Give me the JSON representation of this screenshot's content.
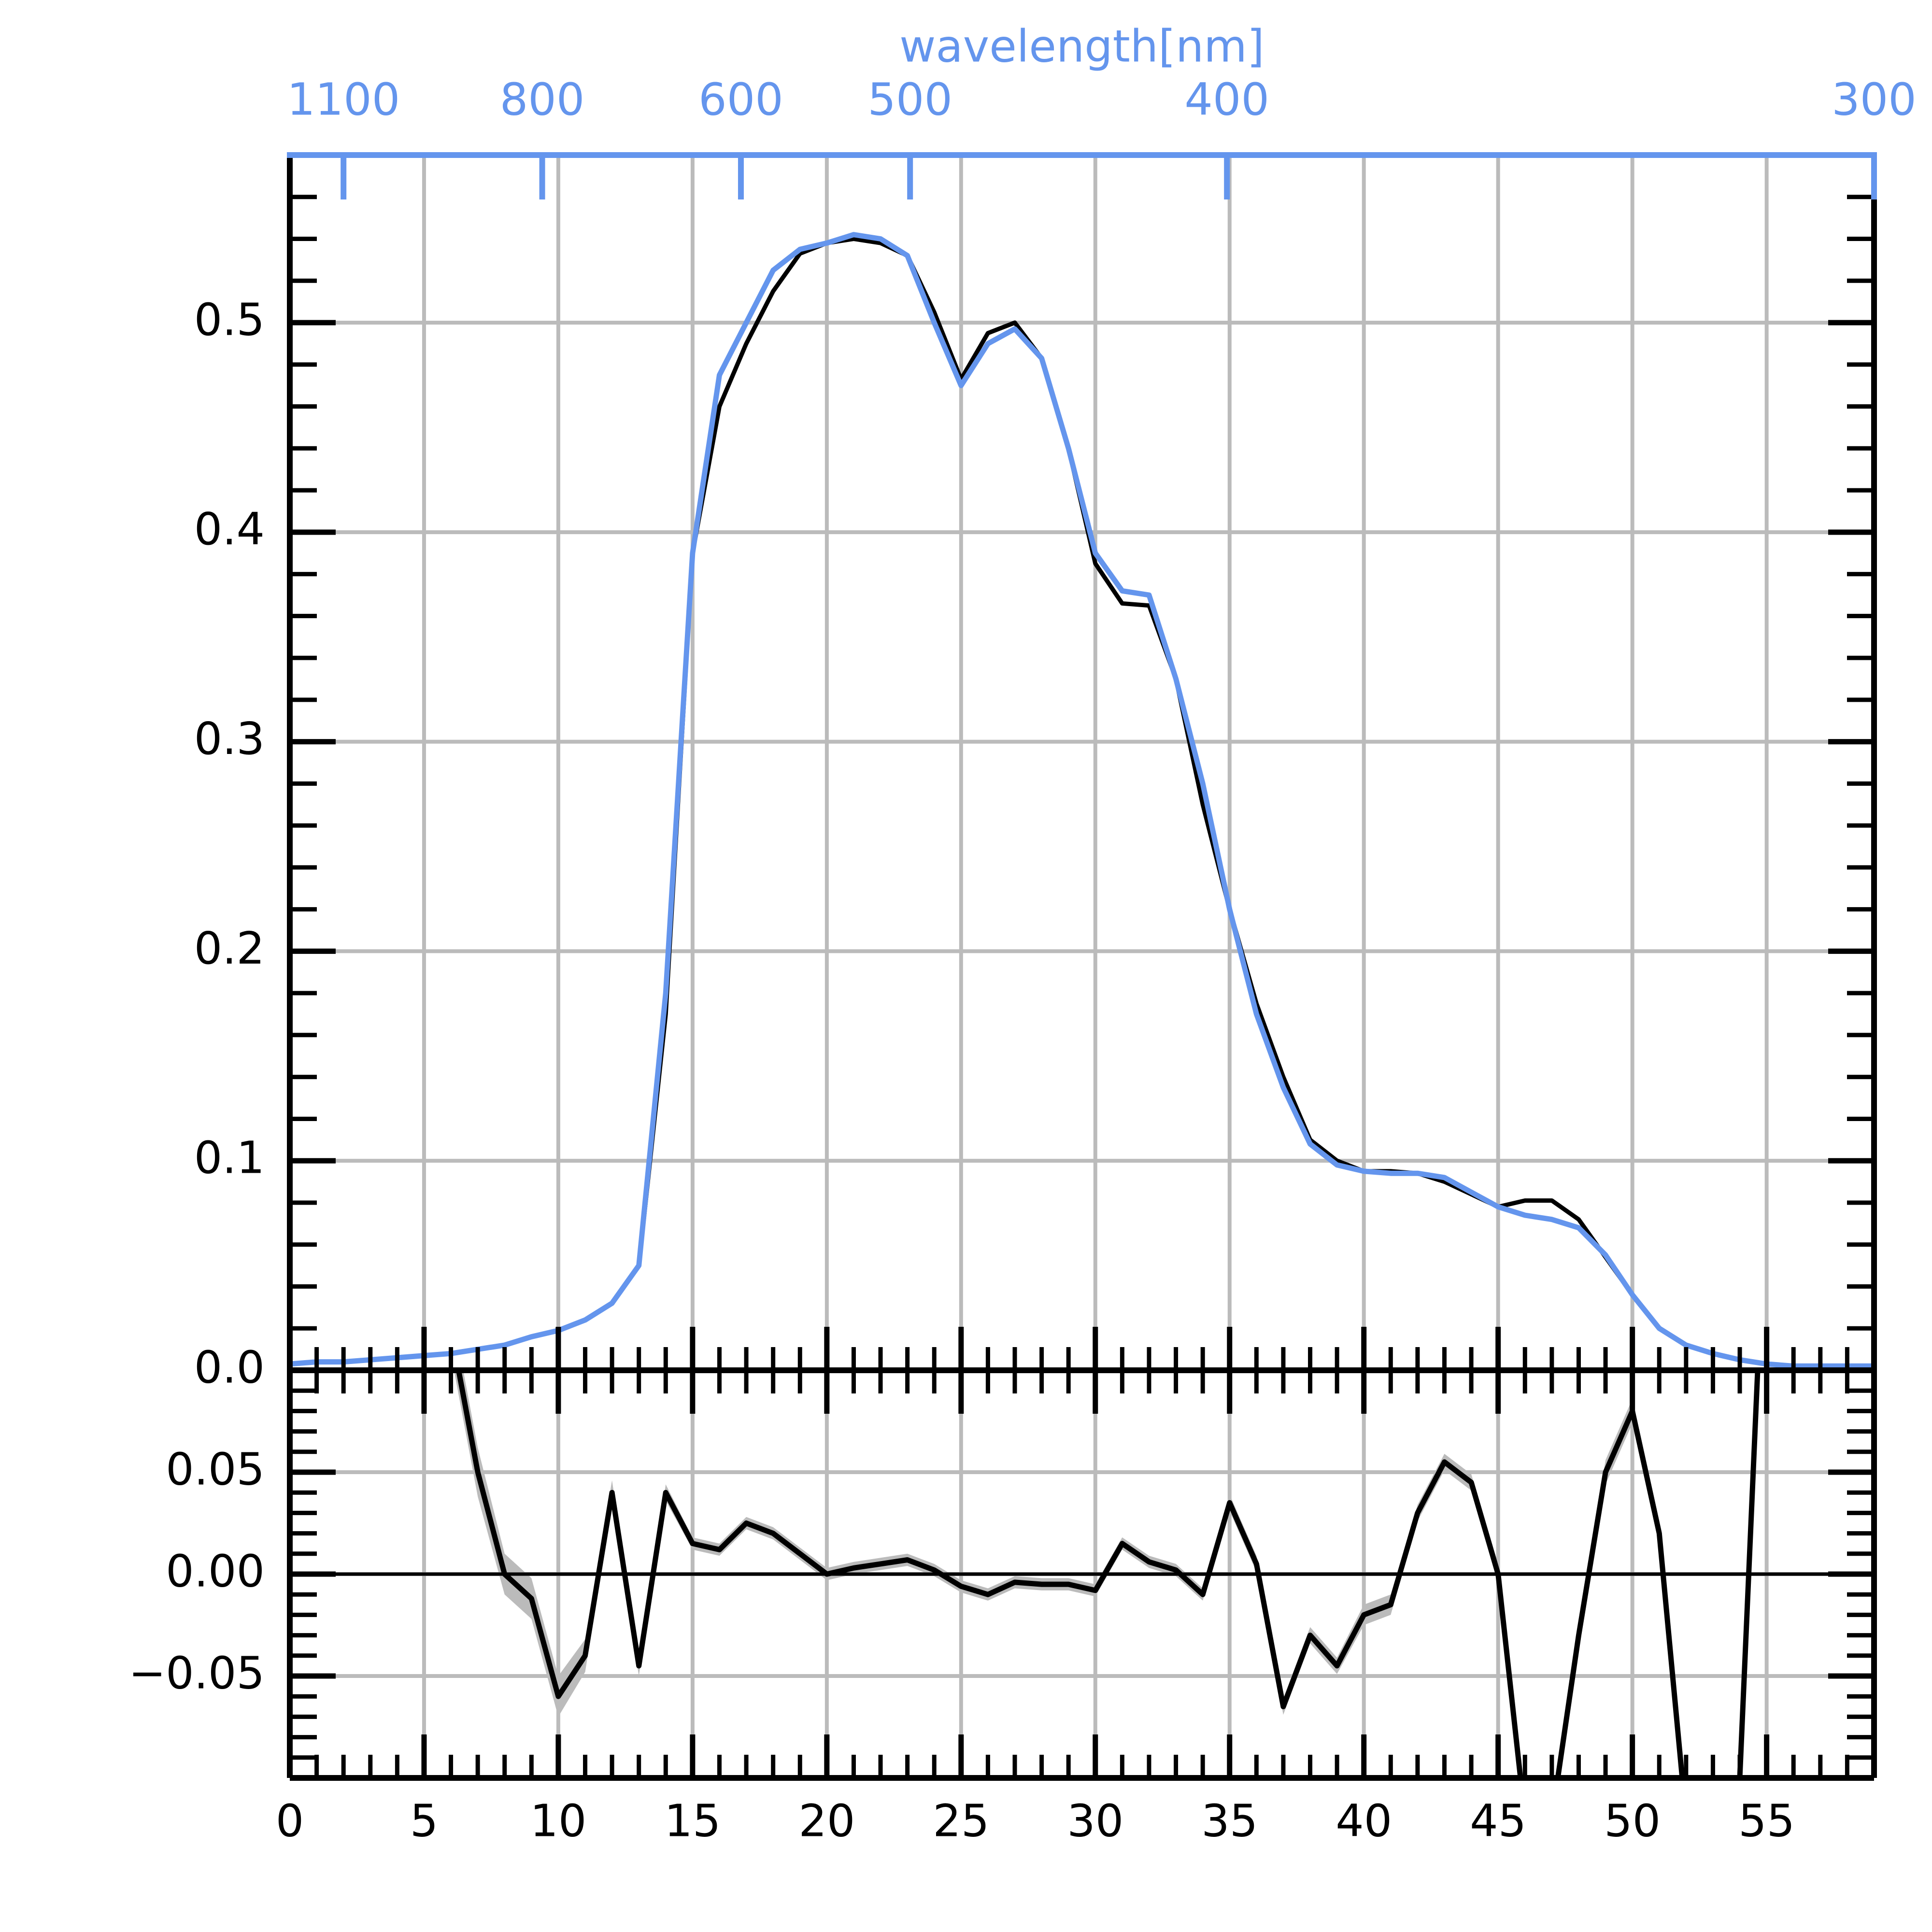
{
  "chart_data": [
    {
      "type": "line",
      "x": [
        0,
        1,
        2,
        3,
        4,
        5,
        6,
        7,
        8,
        9,
        10,
        11,
        12,
        13,
        14,
        15,
        16,
        17,
        18,
        19,
        20,
        21,
        22,
        23,
        24,
        25,
        26,
        27,
        28,
        29,
        30,
        31,
        32,
        33,
        34,
        35,
        36,
        37,
        38,
        39,
        40,
        41,
        42,
        43,
        44,
        45,
        46,
        47,
        48,
        49,
        50,
        51,
        52,
        53,
        54,
        55,
        56,
        57,
        58,
        59
      ],
      "series": [
        {
          "color": "#000000",
          "values": [
            0.003,
            0.004,
            0.004,
            0.005,
            0.006,
            0.007,
            0.008,
            0.01,
            0.012,
            0.016,
            0.019,
            0.024,
            0.032,
            0.05,
            0.17,
            0.39,
            0.46,
            0.49,
            0.515,
            0.533,
            0.538,
            0.54,
            0.538,
            0.532,
            0.505,
            0.473,
            0.495,
            0.5,
            0.483,
            0.44,
            0.385,
            0.366,
            0.365,
            0.33,
            0.27,
            0.22,
            0.175,
            0.14,
            0.11,
            0.1,
            0.095,
            0.095,
            0.094,
            0.09,
            0.084,
            0.078,
            0.081,
            0.081,
            0.072,
            0.054,
            0.036,
            0.02,
            0.012,
            0.008,
            0.005,
            0.003,
            0.002,
            0.002,
            0.002,
            0.002
          ]
        },
        {
          "color": "#6495ed",
          "values": [
            0.003,
            0.004,
            0.004,
            0.005,
            0.006,
            0.007,
            0.008,
            0.01,
            0.012,
            0.016,
            0.019,
            0.024,
            0.032,
            0.05,
            0.18,
            0.39,
            0.475,
            0.5,
            0.525,
            0.535,
            0.538,
            0.542,
            0.54,
            0.532,
            0.5,
            0.47,
            0.49,
            0.497,
            0.483,
            0.44,
            0.39,
            0.372,
            0.37,
            0.33,
            0.28,
            0.22,
            0.17,
            0.135,
            0.108,
            0.098,
            0.095,
            0.094,
            0.094,
            0.092,
            0.085,
            0.078,
            0.074,
            0.072,
            0.068,
            0.055,
            0.036,
            0.02,
            0.012,
            0.008,
            0.005,
            0.003,
            0.002,
            0.002,
            0.002,
            0.002
          ]
        }
      ],
      "xlim": [
        0,
        59
      ],
      "ylim": [
        0,
        0.58
      ],
      "yticks": [
        {
          "value": 0,
          "label": "0.0"
        },
        0.1,
        0.2,
        0.3,
        0.4,
        0.5
      ],
      "yminor": 0.02,
      "x2label": "wavelength[nm]",
      "x2color": "#6495ed",
      "x2ticks": [
        {
          "value": 2.0,
          "label": "1100"
        },
        {
          "value": 9.4,
          "label": "800"
        },
        {
          "value": 16.8,
          "label": "600"
        },
        {
          "value": 23.1,
          "label": "500"
        },
        {
          "value": 34.9,
          "label": "400"
        },
        {
          "value": 59,
          "label": "300"
        }
      ],
      "grid": true
    },
    {
      "type": "residual",
      "x": [
        6,
        7,
        8,
        9,
        10,
        11,
        12,
        13,
        14,
        15,
        16,
        17,
        18,
        19,
        20,
        21,
        22,
        23,
        24,
        25,
        26,
        27,
        28,
        29,
        30,
        31,
        32,
        33,
        34,
        35,
        36,
        37,
        38,
        39,
        40,
        41,
        42,
        43,
        44,
        45,
        46,
        47,
        48,
        49,
        50,
        51,
        52,
        53,
        54,
        55
      ],
      "values": [
        0.12,
        0.05,
        0.0,
        -0.012,
        -0.06,
        -0.04,
        0.04,
        -0.045,
        0.04,
        0.015,
        0.012,
        0.025,
        0.02,
        0.01,
        0.0,
        0.003,
        0.005,
        0.007,
        0.002,
        -0.006,
        -0.01,
        -0.004,
        -0.005,
        -0.005,
        -0.008,
        0.015,
        0.006,
        0.002,
        -0.01,
        0.035,
        0.005,
        -0.065,
        -0.03,
        -0.045,
        -0.02,
        -0.015,
        0.03,
        0.055,
        0.045,
        0.0,
        -0.12,
        -0.12,
        -0.03,
        0.05,
        0.08,
        0.02,
        -0.12,
        -0.2,
        -0.1,
        0.2
      ],
      "errors": [
        0.012,
        0.012,
        0.01,
        0.01,
        0.01,
        0.008,
        0.006,
        0.005,
        0.004,
        0.003,
        0.003,
        0.003,
        0.003,
        0.003,
        0.003,
        0.003,
        0.003,
        0.003,
        0.003,
        0.003,
        0.003,
        0.003,
        0.003,
        0.003,
        0.003,
        0.003,
        0.003,
        0.003,
        0.003,
        0.004,
        0.004,
        0.004,
        0.004,
        0.004,
        0.005,
        0.005,
        0.004,
        0.004,
        0.004,
        0.005,
        0.006,
        0.006,
        0.006,
        0.006,
        0.006,
        0.006,
        0.006,
        0.006,
        0.006,
        0.006
      ],
      "color": "#000000",
      "band_color": "#bbbbbb",
      "xlim": [
        0,
        59
      ],
      "ylim": [
        -0.1,
        0.1
      ],
      "xticks": [
        0,
        5,
        10,
        15,
        20,
        25,
        30,
        35,
        40,
        45,
        50,
        55
      ],
      "xminor": 1,
      "yticks": [
        {
          "value": -0.05,
          "label": "−0.05"
        },
        {
          "value": 0,
          "label": "0.00"
        },
        0.05
      ],
      "yminor": 0.01,
      "hline": 0,
      "grid": true
    }
  ]
}
